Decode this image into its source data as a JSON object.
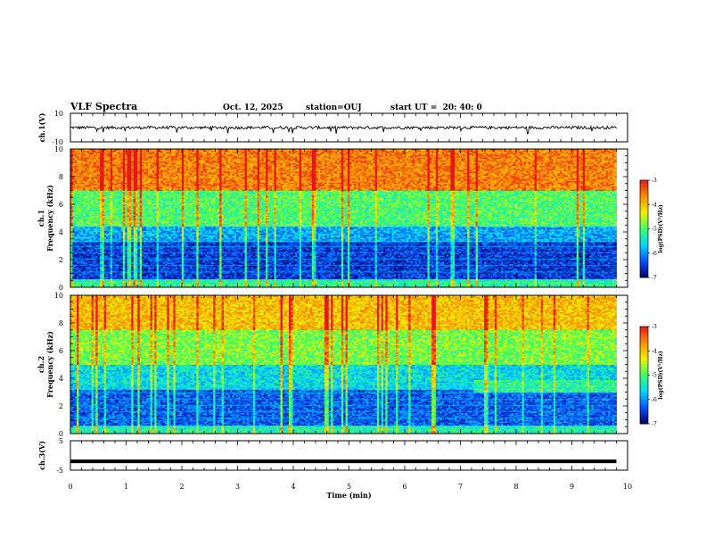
{
  "header": {
    "title": "VLF Spectra",
    "date": "Oct. 12, 2025",
    "station": "station=OUJ",
    "start": "start UT =  20: 40: 0"
  },
  "colors": {
    "spec_low": "#00006e",
    "spec_blue": "#0050ff",
    "spec_cyan": "#00d8ff",
    "spec_green": "#40ff60",
    "spec_yellow": "#f0f000",
    "spec_orange": "#ff8c00",
    "spec_high": "#e41a1a"
  },
  "chart_data": [
    {
      "type": "line",
      "name": "ch1-waveform",
      "ylabel": "ch.1(V)",
      "ylim": [
        -10,
        10
      ],
      "ytick_labels": [
        "10",
        "-10"
      ],
      "xlim": [
        0,
        10
      ],
      "series": [
        {
          "name": "ch.1",
          "approx_level_V": 0,
          "noise_amplitude_V": 2,
          "impulsive_spikes_V": -4,
          "data_end_min": 9.8
        }
      ]
    },
    {
      "type": "heatmap",
      "name": "ch1-spectrogram",
      "ylabel_line1": "ch.1",
      "ylabel_line2": "Frequency (kHz)",
      "ylim": [
        0,
        10
      ],
      "ytick_labels": [
        "0",
        "2",
        "4",
        "6",
        "8",
        "10"
      ],
      "xlim": [
        0,
        10
      ],
      "data_end_min": 9.8,
      "colorbar": {
        "label": "log(PSD)(V²/Hz)",
        "range": [
          -7,
          -3
        ],
        "tick_labels": [
          "-3",
          "-4",
          "-5",
          "-6",
          "-7"
        ]
      },
      "bands": [
        {
          "from_kHz": 0,
          "to_kHz": 0.6,
          "log_psd": -5.2
        },
        {
          "from_kHz": 0.6,
          "to_kHz": 3.3,
          "log_psd": -6.5
        },
        {
          "from_kHz": 3.3,
          "to_kHz": 4.4,
          "log_psd": -5.9
        },
        {
          "from_kHz": 4.4,
          "to_kHz": 7.0,
          "log_psd": -5.0
        },
        {
          "from_kHz": 7.0,
          "to_kHz": 10,
          "log_psd": -3.6
        }
      ]
    },
    {
      "type": "heatmap",
      "name": "ch2-spectrogram",
      "ylabel_line1": "ch.2",
      "ylabel_line2": "Frequency (kHz)",
      "ylim": [
        0,
        10
      ],
      "ytick_labels": [
        "0",
        "2",
        "4",
        "6",
        "8",
        "10"
      ],
      "xlim": [
        0,
        10
      ],
      "data_end_min": 9.8,
      "colorbar": {
        "label": "log(PSD)(V²/Hz)",
        "range": [
          -7,
          -3
        ],
        "tick_labels": [
          "-3",
          "-4",
          "-5",
          "-6",
          "-7"
        ]
      },
      "bands": [
        {
          "from_kHz": 0,
          "to_kHz": 0.6,
          "log_psd": -5.3
        },
        {
          "from_kHz": 0.6,
          "to_kHz": 3.2,
          "log_psd": -6.3
        },
        {
          "from_kHz": 3.2,
          "to_kHz": 5.0,
          "log_psd": -5.6
        },
        {
          "from_kHz": 5.0,
          "to_kHz": 7.5,
          "log_psd": -4.8
        },
        {
          "from_kHz": 7.5,
          "to_kHz": 10,
          "log_psd": -4.0
        }
      ],
      "tone_band": {
        "from_min": 7.2,
        "from_kHz": 3.0,
        "to_kHz": 3.9,
        "log_psd": -5.2
      }
    },
    {
      "type": "line",
      "name": "ch3-waveform",
      "ylabel": "ch.3(V)",
      "ylim": [
        -5,
        5
      ],
      "ytick_labels": [
        "5",
        "-5"
      ],
      "xlabel": "Time (min)",
      "xlim": [
        0,
        10
      ],
      "xtick_labels": [
        "0",
        "1",
        "2",
        "3",
        "4",
        "5",
        "6",
        "7",
        "8",
        "9",
        "10"
      ],
      "series": [
        {
          "name": "ch.3",
          "approx_level_V": -2,
          "data_end_min": 9.8
        }
      ]
    }
  ]
}
